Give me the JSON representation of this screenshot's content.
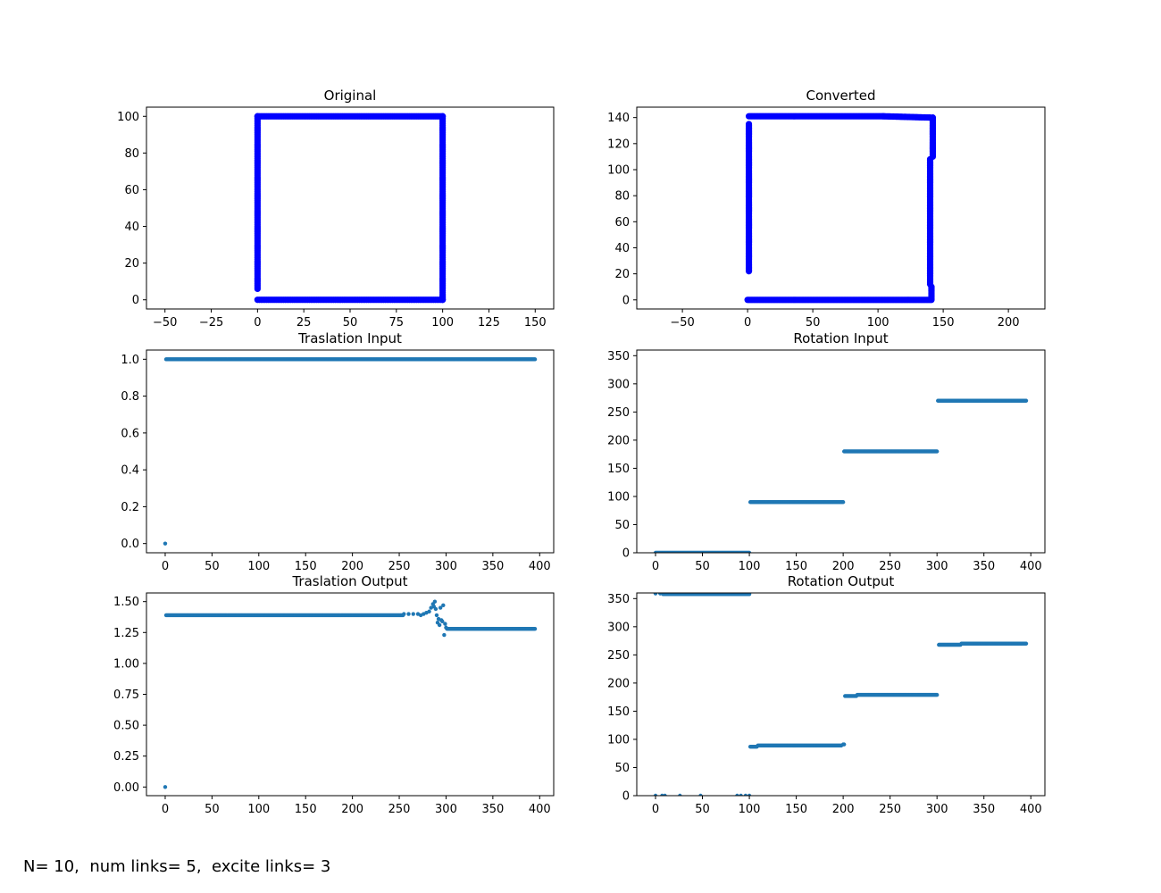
{
  "footer_text": "N= 10,  num links= 5,  excite links= 3",
  "chart_data": [
    {
      "type": "scatter",
      "title": "Original",
      "color": "#0000ff",
      "marker_size": "large",
      "xlim": [
        -60,
        160
      ],
      "ylim": [
        -5,
        105
      ],
      "xticks": [
        -50,
        -25,
        0,
        25,
        50,
        75,
        100,
        125,
        150
      ],
      "yticks": [
        0,
        20,
        40,
        60,
        80,
        100
      ],
      "segments": [
        {
          "from": [
            0,
            6
          ],
          "to": [
            0,
            100
          ]
        },
        {
          "from": [
            0,
            100
          ],
          "to": [
            100,
            100
          ]
        },
        {
          "from": [
            100,
            100
          ],
          "to": [
            100,
            0
          ]
        },
        {
          "from": [
            100,
            0
          ],
          "to": [
            0,
            0
          ]
        }
      ]
    },
    {
      "type": "scatter",
      "title": "Converted",
      "color": "#0000ff",
      "marker_size": "large",
      "xlim": [
        -85,
        228
      ],
      "ylim": [
        -7,
        148
      ],
      "xticks": [
        -50,
        0,
        50,
        100,
        150,
        200
      ],
      "yticks": [
        0,
        20,
        40,
        60,
        80,
        100,
        120,
        140
      ],
      "segments": [
        {
          "from": [
            0,
            0
          ],
          "to": [
            140,
            0
          ]
        },
        {
          "from": [
            141,
            0
          ],
          "to": [
            141,
            10
          ]
        },
        {
          "from": [
            140,
            12
          ],
          "to": [
            140,
            108
          ]
        },
        {
          "from": [
            142,
            110
          ],
          "to": [
            142,
            140
          ]
        },
        {
          "from": [
            140,
            140
          ],
          "to": [
            104,
            141
          ]
        },
        {
          "from": [
            104,
            141
          ],
          "to": [
            1,
            141
          ]
        },
        {
          "from": [
            1,
            135
          ],
          "to": [
            1,
            22
          ]
        }
      ]
    },
    {
      "type": "scatter",
      "title": "Traslation Input",
      "color": "#1f77b4",
      "marker_size": "small",
      "xlim": [
        -20,
        415
      ],
      "ylim": [
        -0.05,
        1.05
      ],
      "xticks": [
        0,
        50,
        100,
        150,
        200,
        250,
        300,
        350,
        400
      ],
      "yticks": [
        0.0,
        0.2,
        0.4,
        0.6,
        0.8,
        1.0
      ],
      "ytick_labels": [
        "0.0",
        "0.2",
        "0.4",
        "0.6",
        "0.8",
        "1.0"
      ],
      "points": [
        [
          0,
          0.0
        ]
      ],
      "runs": [
        {
          "x_start": 1,
          "x_end": 395,
          "y": 1.0
        }
      ]
    },
    {
      "type": "scatter",
      "title": "Rotation Input",
      "color": "#1f77b4",
      "marker_size": "small",
      "xlim": [
        -20,
        415
      ],
      "ylim": [
        0,
        360
      ],
      "xticks": [
        0,
        50,
        100,
        150,
        200,
        250,
        300,
        350,
        400
      ],
      "yticks": [
        0,
        50,
        100,
        150,
        200,
        250,
        300,
        350
      ],
      "runs": [
        {
          "x_start": 0,
          "x_end": 100,
          "y": 0
        },
        {
          "x_start": 101,
          "x_end": 200,
          "y": 90
        },
        {
          "x_start": 201,
          "x_end": 300,
          "y": 180
        },
        {
          "x_start": 301,
          "x_end": 395,
          "y": 270
        }
      ]
    },
    {
      "type": "scatter",
      "title": "Traslation Output",
      "color": "#1f77b4",
      "marker_size": "small",
      "xlim": [
        -20,
        415
      ],
      "ylim": [
        -0.07,
        1.57
      ],
      "xticks": [
        0,
        50,
        100,
        150,
        200,
        250,
        300,
        350,
        400
      ],
      "yticks": [
        0.0,
        0.25,
        0.5,
        0.75,
        1.0,
        1.25,
        1.5
      ],
      "ytick_labels": [
        "0.00",
        "0.25",
        "0.50",
        "0.75",
        "1.00",
        "1.25",
        "1.50"
      ],
      "points": [
        [
          0,
          0.0
        ],
        [
          255,
          1.4
        ],
        [
          260,
          1.4
        ],
        [
          265,
          1.4
        ],
        [
          270,
          1.4
        ],
        [
          273,
          1.39
        ],
        [
          276,
          1.4
        ],
        [
          279,
          1.41
        ],
        [
          282,
          1.42
        ],
        [
          284,
          1.45
        ],
        [
          286,
          1.48
        ],
        [
          287,
          1.46
        ],
        [
          288,
          1.5
        ],
        [
          289,
          1.44
        ],
        [
          290,
          1.39
        ],
        [
          291,
          1.33
        ],
        [
          292,
          1.36
        ],
        [
          293,
          1.31
        ],
        [
          294,
          1.45
        ],
        [
          295,
          1.35
        ],
        [
          296,
          1.34
        ],
        [
          297,
          1.47
        ],
        [
          298,
          1.23
        ],
        [
          299,
          1.32
        ],
        [
          300,
          1.29
        ]
      ],
      "runs": [
        {
          "x_start": 1,
          "x_end": 254,
          "y": 1.39
        },
        {
          "x_start": 301,
          "x_end": 395,
          "y": 1.28
        }
      ]
    },
    {
      "type": "scatter",
      "title": "Rotation Output",
      "color": "#1f77b4",
      "marker_size": "small",
      "xlim": [
        -20,
        415
      ],
      "ylim": [
        0,
        360
      ],
      "xticks": [
        0,
        50,
        100,
        150,
        200,
        250,
        300,
        350,
        400
      ],
      "yticks": [
        0,
        50,
        100,
        150,
        200,
        250,
        300,
        350
      ],
      "points": [
        [
          0,
          0
        ],
        [
          7,
          0
        ],
        [
          10,
          0
        ],
        [
          26,
          0
        ],
        [
          48,
          0
        ],
        [
          87,
          0
        ],
        [
          91,
          0
        ],
        [
          96,
          0
        ],
        [
          100,
          0
        ],
        [
          0,
          359
        ],
        [
          5,
          359
        ]
      ],
      "runs": [
        {
          "x_start": 8,
          "x_end": 100,
          "y": 358
        },
        {
          "x_start": 101,
          "x_end": 108,
          "y": 87
        },
        {
          "x_start": 109,
          "x_end": 198,
          "y": 89
        },
        {
          "x_start": 200,
          "x_end": 201,
          "y": 91
        },
        {
          "x_start": 202,
          "x_end": 214,
          "y": 177
        },
        {
          "x_start": 215,
          "x_end": 300,
          "y": 179
        },
        {
          "x_start": 302,
          "x_end": 325,
          "y": 268
        },
        {
          "x_start": 326,
          "x_end": 395,
          "y": 270
        }
      ]
    }
  ]
}
